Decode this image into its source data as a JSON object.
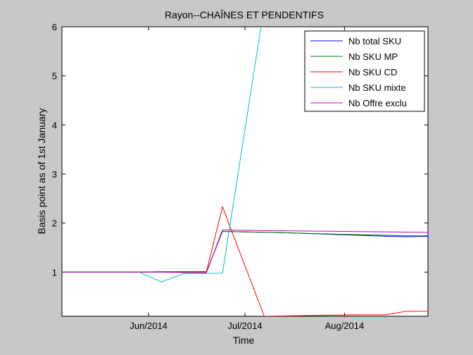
{
  "chart_data": {
    "type": "line",
    "title": "Rayon--CHAÎNES ET PENDENTIFS",
    "xlabel": "Time",
    "ylabel": "Basis point as of 1st January",
    "x_start": "2014-05-05",
    "x_end": "2014-08-27",
    "xlim": [
      "2014-05-05",
      "2014-08-27"
    ],
    "ylim": [
      0.1,
      6
    ],
    "x_ticks": [
      {
        "date": "2014-06-01",
        "label": "Jun/2014"
      },
      {
        "date": "2014-07-01",
        "label": "Jul/2014"
      },
      {
        "date": "2014-08-01",
        "label": "Aug/2014"
      }
    ],
    "y_ticks": [
      1,
      2,
      3,
      4,
      5,
      6
    ],
    "legend_position": "top-right",
    "series": [
      {
        "name": "Nb total SKU",
        "color": "#0000ff",
        "points": [
          [
            "2014-05-05",
            1.0
          ],
          [
            "2014-05-29",
            1.0
          ],
          [
            "2014-06-05",
            1.0
          ],
          [
            "2014-06-12",
            1.0
          ],
          [
            "2014-06-19",
            1.0
          ],
          [
            "2014-06-24",
            1.83
          ],
          [
            "2014-07-01",
            1.82
          ],
          [
            "2014-07-15",
            1.8
          ],
          [
            "2014-08-01",
            1.76
          ],
          [
            "2014-08-15",
            1.73
          ],
          [
            "2014-08-20",
            1.72
          ],
          [
            "2014-08-27",
            1.73
          ]
        ]
      },
      {
        "name": "Nb SKU MP",
        "color": "#008000",
        "points": [
          [
            "2014-05-05",
            1.0
          ],
          [
            "2014-05-29",
            1.0
          ],
          [
            "2014-06-05",
            1.0
          ],
          [
            "2014-06-12",
            1.0
          ],
          [
            "2014-06-19",
            1.0
          ],
          [
            "2014-06-24",
            1.83
          ],
          [
            "2014-07-01",
            1.82
          ],
          [
            "2014-07-15",
            1.8
          ],
          [
            "2014-08-01",
            1.77
          ],
          [
            "2014-08-15",
            1.75
          ],
          [
            "2014-08-20",
            1.74
          ],
          [
            "2014-08-27",
            1.74
          ]
        ]
      },
      {
        "name": "Nb SKU CD",
        "color": "#ff0000",
        "points": [
          [
            "2014-05-05",
            1.0
          ],
          [
            "2014-05-29",
            1.0
          ],
          [
            "2014-06-05",
            1.01
          ],
          [
            "2014-06-12",
            1.01
          ],
          [
            "2014-06-19",
            1.01
          ],
          [
            "2014-06-24",
            2.33
          ],
          [
            "2014-07-07",
            0.1
          ],
          [
            "2014-08-05",
            0.13
          ],
          [
            "2014-08-11",
            0.13
          ],
          [
            "2014-08-14",
            0.13
          ],
          [
            "2014-08-20",
            0.2
          ],
          [
            "2014-08-27",
            0.2
          ]
        ]
      },
      {
        "name": "Nb SKU mixte",
        "color": "#00bfbf",
        "points": [
          [
            "2014-05-05",
            1.0
          ],
          [
            "2014-05-29",
            1.0
          ],
          [
            "2014-06-05",
            0.8
          ],
          [
            "2014-06-12",
            0.97
          ],
          [
            "2014-06-19",
            0.97
          ],
          [
            "2014-06-24",
            0.98
          ],
          [
            "2014-07-06",
            6.0
          ]
        ]
      },
      {
        "name": "Nb Offre exclu",
        "color": "#bf00bf",
        "points": [
          [
            "2014-05-05",
            1.0
          ],
          [
            "2014-05-29",
            1.0
          ],
          [
            "2014-06-05",
            1.0
          ],
          [
            "2014-06-12",
            0.99
          ],
          [
            "2014-06-19",
            0.99
          ],
          [
            "2014-06-24",
            1.86
          ],
          [
            "2014-07-01",
            1.85
          ],
          [
            "2014-07-15",
            1.84
          ],
          [
            "2014-08-01",
            1.83
          ],
          [
            "2014-08-15",
            1.82
          ],
          [
            "2014-08-27",
            1.81
          ]
        ]
      }
    ]
  }
}
